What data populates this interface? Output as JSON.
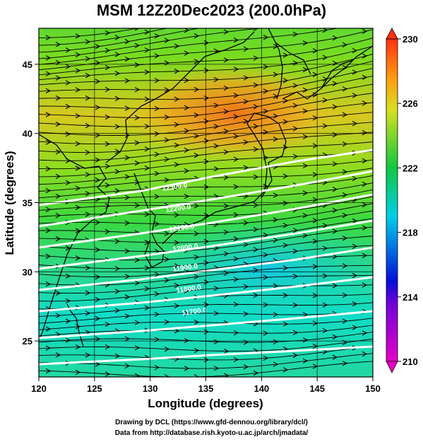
{
  "title": "MSM 12Z20Dec2023 (200.0hPa)",
  "x_axis": {
    "label": "Longitude (degrees)",
    "range": [
      120,
      150
    ],
    "ticks": [
      "120",
      "125",
      "130",
      "135",
      "140",
      "145",
      "150"
    ]
  },
  "y_axis": {
    "label": "Latitude  (degrees)",
    "range": [
      22.4,
      47.6
    ],
    "ticks": [
      "25",
      "30",
      "35",
      "40",
      "45"
    ]
  },
  "colorbar": {
    "range": [
      210,
      230
    ],
    "ticks": [
      "210",
      "214",
      "218",
      "222",
      "226",
      "230"
    ],
    "colors": [
      "#e600c8",
      "#0010d8",
      "#00cfe8",
      "#10c840",
      "#d8e020",
      "#ff9a10",
      "#ff3010"
    ]
  },
  "contour_labels": [
    "12300.0",
    "12200.0",
    "12100.0",
    "12000.0",
    "11900.0",
    "11800.0",
    "11700.0"
  ],
  "footer": {
    "line1": "Drawing by DCL (https://www.gfd-dennou.org/library/dcl/)",
    "line2": "Data from http://database.rish.kyoto-u.ac.jp/arch/jmadata/"
  }
}
